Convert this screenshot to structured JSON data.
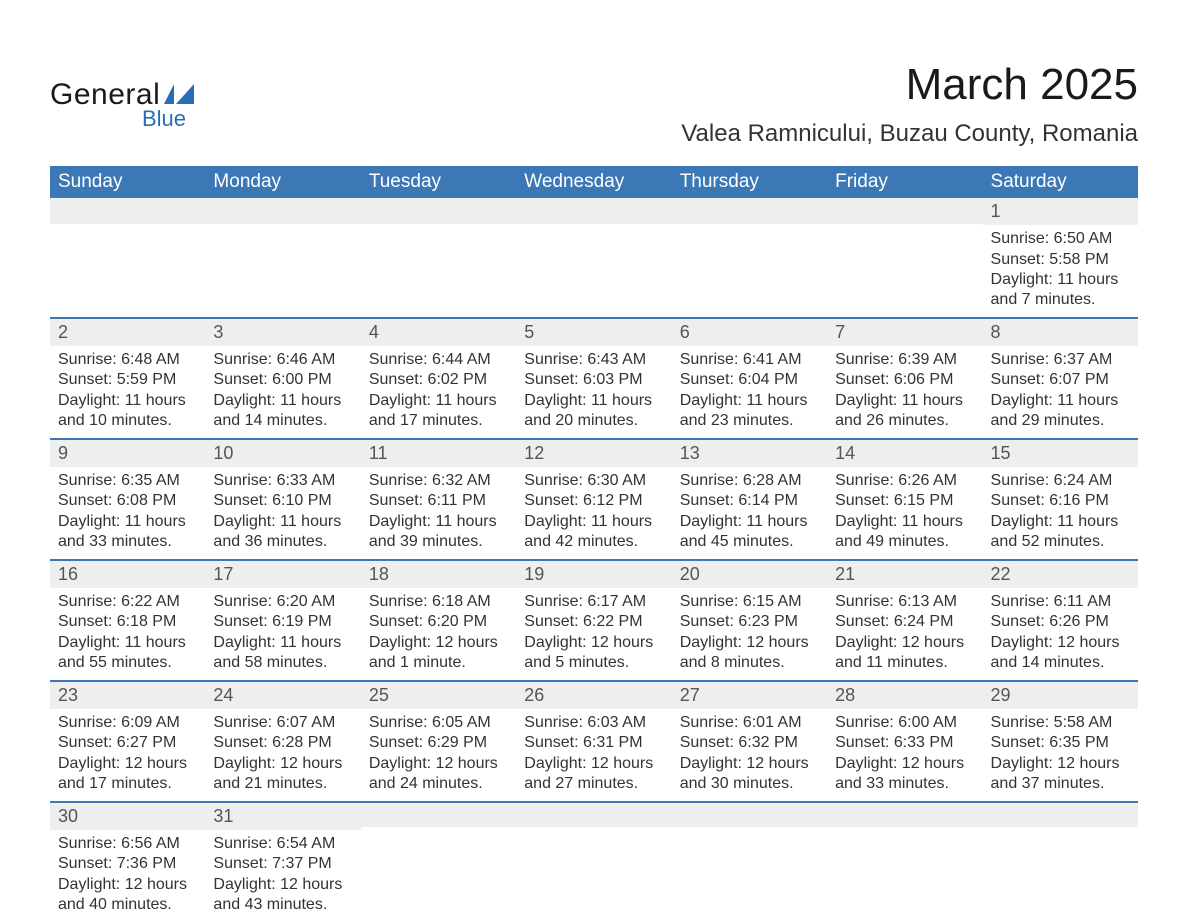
{
  "logo": {
    "text_top": "General",
    "text_bottom": "Blue",
    "accent_color": "#2a6db5"
  },
  "title": "March 2025",
  "location": "Valea Ramnicului, Buzau County, Romania",
  "colors": {
    "header_bg": "#3b78b5",
    "header_fg": "#ffffff",
    "row_border": "#3b78b5",
    "daynum_bg": "#eeeeee",
    "daynum_fg": "#555555",
    "body_fg": "#333333",
    "page_bg": "#ffffff"
  },
  "typography": {
    "title_fontsize": 44,
    "location_fontsize": 24,
    "header_fontsize": 19,
    "daynum_fontsize": 18,
    "body_fontsize": 16,
    "font_family": "Arial"
  },
  "weekdays": [
    "Sunday",
    "Monday",
    "Tuesday",
    "Wednesday",
    "Thursday",
    "Friday",
    "Saturday"
  ],
  "layout": {
    "first_day_column": 6,
    "days_in_month": 31,
    "columns": 7
  },
  "days": {
    "1": {
      "sunrise": "6:50 AM",
      "sunset": "5:58 PM",
      "daylight": "11 hours and 7 minutes."
    },
    "2": {
      "sunrise": "6:48 AM",
      "sunset": "5:59 PM",
      "daylight": "11 hours and 10 minutes."
    },
    "3": {
      "sunrise": "6:46 AM",
      "sunset": "6:00 PM",
      "daylight": "11 hours and 14 minutes."
    },
    "4": {
      "sunrise": "6:44 AM",
      "sunset": "6:02 PM",
      "daylight": "11 hours and 17 minutes."
    },
    "5": {
      "sunrise": "6:43 AM",
      "sunset": "6:03 PM",
      "daylight": "11 hours and 20 minutes."
    },
    "6": {
      "sunrise": "6:41 AM",
      "sunset": "6:04 PM",
      "daylight": "11 hours and 23 minutes."
    },
    "7": {
      "sunrise": "6:39 AM",
      "sunset": "6:06 PM",
      "daylight": "11 hours and 26 minutes."
    },
    "8": {
      "sunrise": "6:37 AM",
      "sunset": "6:07 PM",
      "daylight": "11 hours and 29 minutes."
    },
    "9": {
      "sunrise": "6:35 AM",
      "sunset": "6:08 PM",
      "daylight": "11 hours and 33 minutes."
    },
    "10": {
      "sunrise": "6:33 AM",
      "sunset": "6:10 PM",
      "daylight": "11 hours and 36 minutes."
    },
    "11": {
      "sunrise": "6:32 AM",
      "sunset": "6:11 PM",
      "daylight": "11 hours and 39 minutes."
    },
    "12": {
      "sunrise": "6:30 AM",
      "sunset": "6:12 PM",
      "daylight": "11 hours and 42 minutes."
    },
    "13": {
      "sunrise": "6:28 AM",
      "sunset": "6:14 PM",
      "daylight": "11 hours and 45 minutes."
    },
    "14": {
      "sunrise": "6:26 AM",
      "sunset": "6:15 PM",
      "daylight": "11 hours and 49 minutes."
    },
    "15": {
      "sunrise": "6:24 AM",
      "sunset": "6:16 PM",
      "daylight": "11 hours and 52 minutes."
    },
    "16": {
      "sunrise": "6:22 AM",
      "sunset": "6:18 PM",
      "daylight": "11 hours and 55 minutes."
    },
    "17": {
      "sunrise": "6:20 AM",
      "sunset": "6:19 PM",
      "daylight": "11 hours and 58 minutes."
    },
    "18": {
      "sunrise": "6:18 AM",
      "sunset": "6:20 PM",
      "daylight": "12 hours and 1 minute."
    },
    "19": {
      "sunrise": "6:17 AM",
      "sunset": "6:22 PM",
      "daylight": "12 hours and 5 minutes."
    },
    "20": {
      "sunrise": "6:15 AM",
      "sunset": "6:23 PM",
      "daylight": "12 hours and 8 minutes."
    },
    "21": {
      "sunrise": "6:13 AM",
      "sunset": "6:24 PM",
      "daylight": "12 hours and 11 minutes."
    },
    "22": {
      "sunrise": "6:11 AM",
      "sunset": "6:26 PM",
      "daylight": "12 hours and 14 minutes."
    },
    "23": {
      "sunrise": "6:09 AM",
      "sunset": "6:27 PM",
      "daylight": "12 hours and 17 minutes."
    },
    "24": {
      "sunrise": "6:07 AM",
      "sunset": "6:28 PM",
      "daylight": "12 hours and 21 minutes."
    },
    "25": {
      "sunrise": "6:05 AM",
      "sunset": "6:29 PM",
      "daylight": "12 hours and 24 minutes."
    },
    "26": {
      "sunrise": "6:03 AM",
      "sunset": "6:31 PM",
      "daylight": "12 hours and 27 minutes."
    },
    "27": {
      "sunrise": "6:01 AM",
      "sunset": "6:32 PM",
      "daylight": "12 hours and 30 minutes."
    },
    "28": {
      "sunrise": "6:00 AM",
      "sunset": "6:33 PM",
      "daylight": "12 hours and 33 minutes."
    },
    "29": {
      "sunrise": "5:58 AM",
      "sunset": "6:35 PM",
      "daylight": "12 hours and 37 minutes."
    },
    "30": {
      "sunrise": "6:56 AM",
      "sunset": "7:36 PM",
      "daylight": "12 hours and 40 minutes."
    },
    "31": {
      "sunrise": "6:54 AM",
      "sunset": "7:37 PM",
      "daylight": "12 hours and 43 minutes."
    }
  },
  "labels": {
    "sunrise": "Sunrise:",
    "sunset": "Sunset:",
    "daylight": "Daylight:"
  }
}
